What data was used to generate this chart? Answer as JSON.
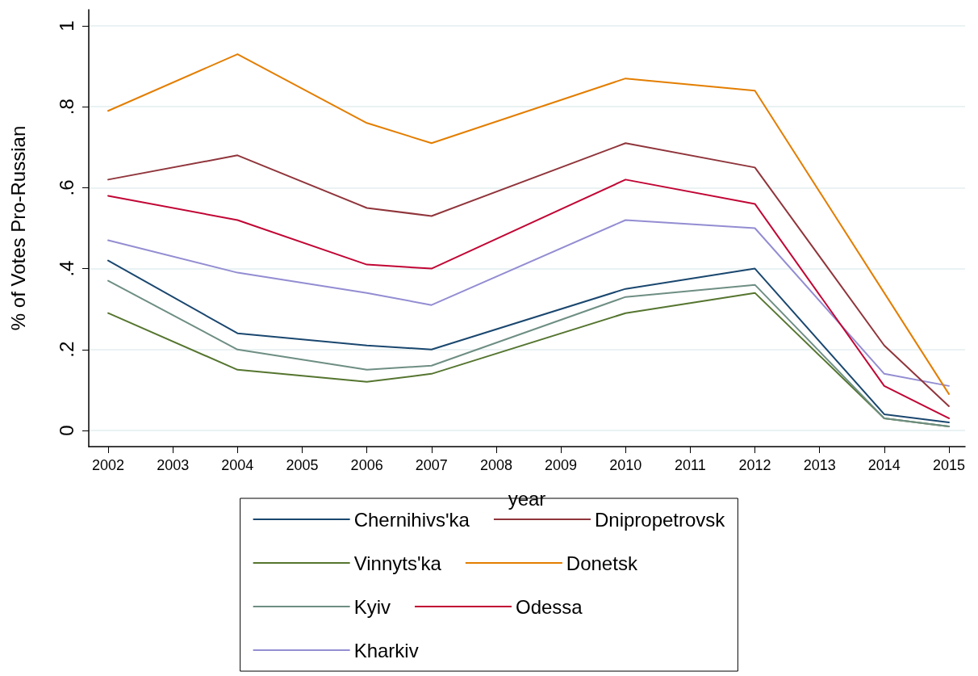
{
  "chart_data": {
    "type": "line",
    "xlabel": "year",
    "ylabel": "% of Votes Pro-Russian",
    "x": [
      2002,
      2004,
      2006,
      2007,
      2010,
      2012,
      2014,
      2015
    ],
    "xlim": [
      2001.7,
      2015.25
    ],
    "xticks": [
      2002,
      2003,
      2004,
      2005,
      2006,
      2007,
      2008,
      2009,
      2010,
      2011,
      2012,
      2013,
      2014,
      2015
    ],
    "ylim": [
      -0.04,
      1.04
    ],
    "yticks": [
      {
        "value": 0,
        "label": "0"
      },
      {
        "value": 0.2,
        "label": ".2"
      },
      {
        "value": 0.4,
        "label": ".4"
      },
      {
        "value": 0.6,
        "label": ".6"
      },
      {
        "value": 0.8,
        "label": ".8"
      },
      {
        "value": 1,
        "label": "1"
      }
    ],
    "grid": "y",
    "legend": "bottom",
    "marker": "none",
    "line_style": "solid",
    "series": [
      {
        "name": "Chernihivsʹka",
        "color": "#1a476f",
        "values": [
          0.42,
          0.24,
          0.21,
          0.2,
          0.35,
          0.4,
          0.04,
          0.02
        ]
      },
      {
        "name": "Vinnyts'ka",
        "color": "#55752f",
        "values": [
          0.29,
          0.15,
          0.12,
          0.14,
          0.29,
          0.34,
          0.03,
          0.01
        ]
      },
      {
        "name": "Kyiv",
        "color": "#6e8e84",
        "values": [
          0.37,
          0.2,
          0.15,
          0.16,
          0.33,
          0.36,
          0.03,
          0.01
        ]
      },
      {
        "name": "Kharkiv",
        "color": "#938dd2",
        "values": [
          0.47,
          0.39,
          0.34,
          0.31,
          0.52,
          0.5,
          0.14,
          0.11
        ]
      },
      {
        "name": "Dnipropetrovsk",
        "color": "#90353b",
        "values": [
          0.62,
          0.68,
          0.55,
          0.53,
          0.71,
          0.65,
          0.21,
          0.06
        ]
      },
      {
        "name": "Donetsk",
        "color": "#e37e00",
        "values": [
          0.79,
          0.93,
          0.76,
          0.71,
          0.87,
          0.84,
          0.34,
          0.09
        ]
      },
      {
        "name": "Odessa",
        "color": "#c10534",
        "values": [
          0.58,
          0.52,
          0.41,
          0.4,
          0.62,
          0.56,
          0.11,
          0.03
        ]
      }
    ]
  }
}
